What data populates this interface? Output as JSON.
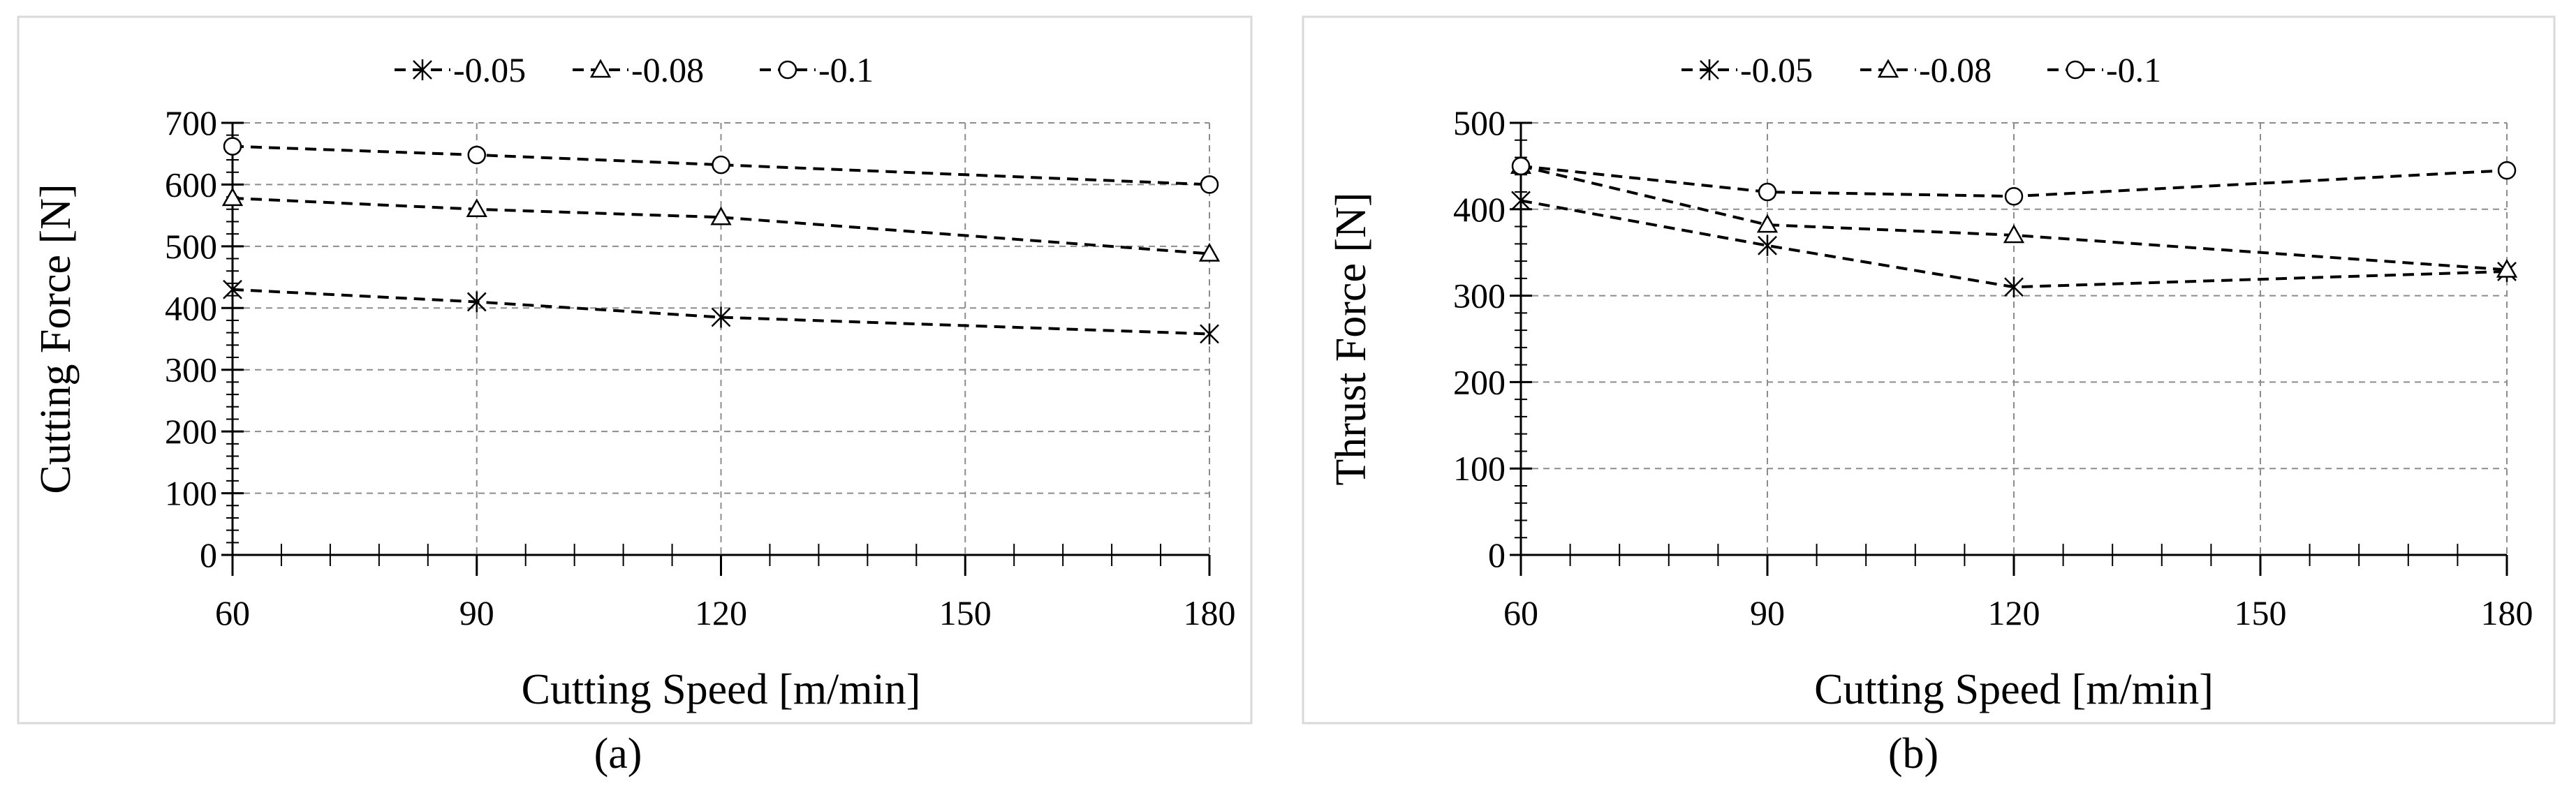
{
  "chart_data": [
    {
      "type": "line",
      "xlabel": "Cutting Speed [m/min]",
      "ylabel": "Cutting Force [N]",
      "panel_label": "(a)",
      "xlim": [
        60,
        180
      ],
      "ylim": [
        0,
        700
      ],
      "x_ticks": [
        60,
        90,
        120,
        150,
        180
      ],
      "y_ticks": [
        0,
        100,
        200,
        300,
        400,
        500,
        600,
        700
      ],
      "grid": true,
      "legend_position": "top",
      "x": [
        60,
        90,
        120,
        180
      ],
      "series": [
        {
          "name": "0.05",
          "marker": "asterisk",
          "values": [
            430,
            410,
            385,
            358
          ]
        },
        {
          "name": "0.08",
          "marker": "triangle",
          "values": [
            578,
            560,
            547,
            488
          ]
        },
        {
          "name": "0.1",
          "marker": "circle",
          "values": [
            662,
            648,
            632,
            600
          ]
        }
      ]
    },
    {
      "type": "line",
      "xlabel": "Cutting Speed [m/min]",
      "ylabel": "Thrust Force [N]",
      "panel_label": "(b)",
      "xlim": [
        60,
        180
      ],
      "ylim": [
        0,
        500
      ],
      "x_ticks": [
        60,
        90,
        120,
        150,
        180
      ],
      "y_ticks": [
        0,
        100,
        200,
        300,
        400,
        500
      ],
      "grid": true,
      "legend_position": "top",
      "x": [
        60,
        90,
        120,
        180
      ],
      "series": [
        {
          "name": "0.05",
          "marker": "asterisk",
          "values": [
            410,
            358,
            310,
            328
          ]
        },
        {
          "name": "0.08",
          "marker": "triangle",
          "values": [
            450,
            382,
            370,
            330
          ]
        },
        {
          "name": "0.1",
          "marker": "circle",
          "values": [
            450,
            420,
            415,
            445
          ]
        }
      ]
    }
  ]
}
